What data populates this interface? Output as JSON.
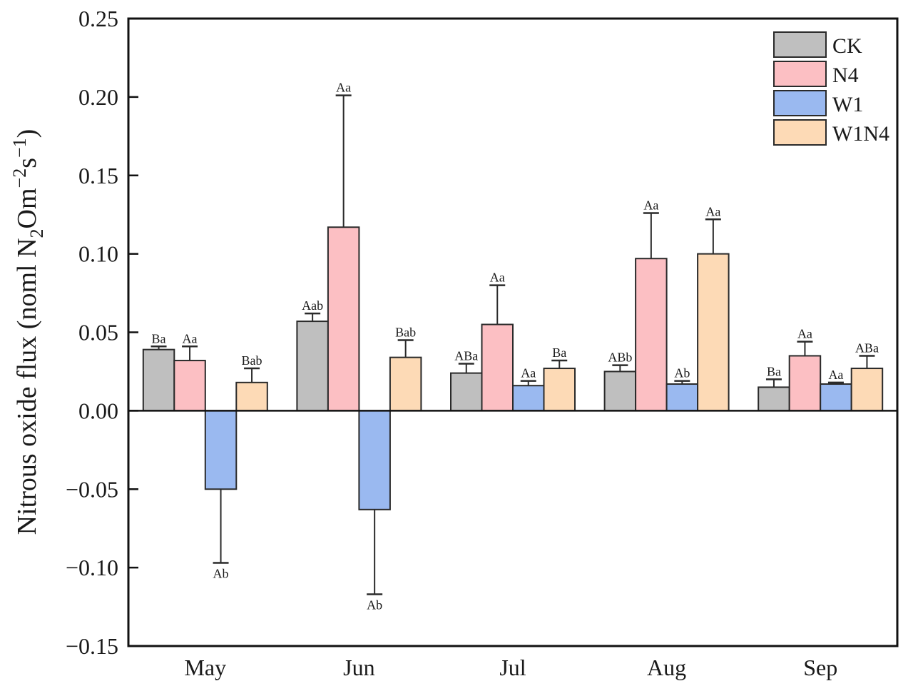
{
  "chart_data": {
    "type": "bar",
    "title": "",
    "xlabel": "",
    "ylabel": {
      "prefix": "Nitrous oxide flux (noml N",
      "sub": "2",
      "mid": "Om",
      "sup1": "−2",
      "mid2": "s",
      "sup2": "−1",
      "suffix": ")"
    },
    "ylabel_full": "Nitrous oxide flux (noml N2Om−2s−1)",
    "ylim": [
      -0.15,
      0.25
    ],
    "yticks": [
      -0.15,
      -0.1,
      -0.05,
      0.0,
      0.05,
      0.1,
      0.15,
      0.2,
      0.25
    ],
    "ytick_labels": [
      "−0.15",
      "−0.10",
      "−0.05",
      "0.00",
      "0.05",
      "0.10",
      "0.15",
      "0.20",
      "0.25"
    ],
    "grid": false,
    "legend_position": "top-right",
    "categories": [
      "May",
      "Jun",
      "Jul",
      "Aug",
      "Sep"
    ],
    "series": [
      {
        "name": "CK",
        "color": "#bfbfbf",
        "values": [
          0.039,
          0.057,
          0.024,
          0.025,
          0.015
        ],
        "error": [
          0.002,
          0.005,
          0.006,
          0.004,
          0.005
        ],
        "labels": [
          "Ba",
          "Aab",
          "ABa",
          "ABb",
          "Ba"
        ]
      },
      {
        "name": "N4",
        "color": "#fcbfc3",
        "values": [
          0.032,
          0.117,
          0.055,
          0.097,
          0.035
        ],
        "error": [
          0.009,
          0.084,
          0.025,
          0.029,
          0.009
        ],
        "labels": [
          "Aa",
          "Aa",
          "Aa",
          "Aa",
          "Aa"
        ]
      },
      {
        "name": "W1",
        "color": "#9ab9f0",
        "values": [
          -0.05,
          -0.063,
          0.016,
          0.017,
          0.017
        ],
        "error": [
          0.047,
          0.054,
          0.003,
          0.002,
          0.001
        ],
        "labels": [
          "Ab",
          "Ab",
          "Aa",
          "Ab",
          "Aa"
        ]
      },
      {
        "name": "W1N4",
        "color": "#fddab6",
        "values": [
          0.018,
          0.034,
          0.027,
          0.1,
          0.027
        ],
        "error": [
          0.009,
          0.011,
          0.005,
          0.022,
          0.008
        ],
        "labels": [
          "Bab",
          "Bab",
          "Ba",
          "Aa",
          "ABa"
        ]
      }
    ]
  }
}
